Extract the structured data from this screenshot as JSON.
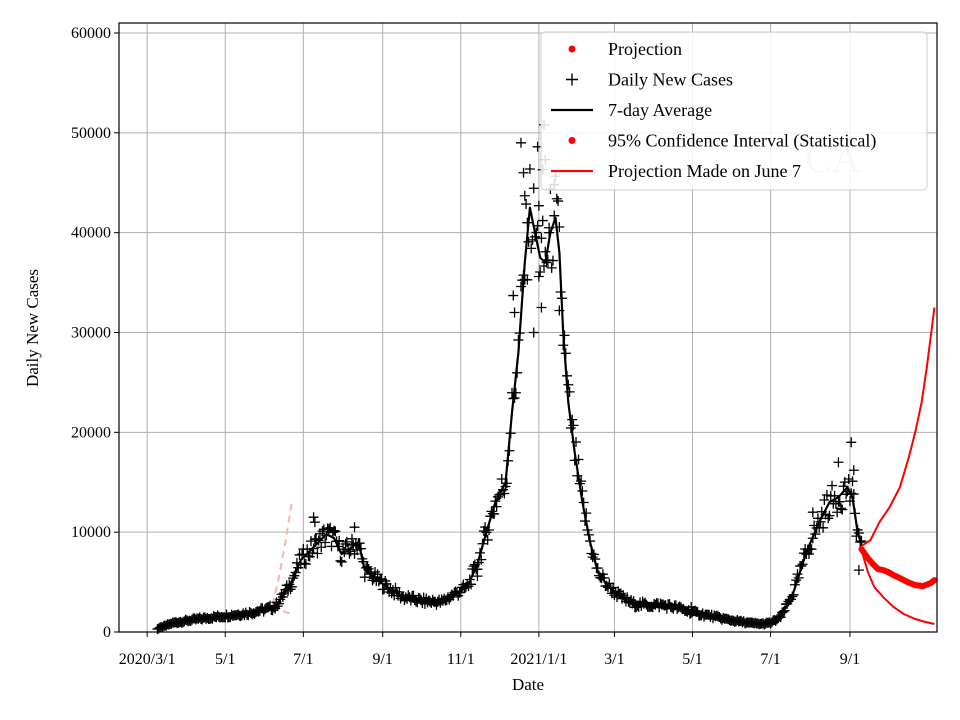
{
  "chart_data": {
    "type": "line",
    "title": "",
    "watermark": "CA",
    "xlabel": "Date",
    "ylabel": "Daily New Cases",
    "ylim": [
      0,
      61000
    ],
    "yticks": [
      0,
      10000,
      20000,
      30000,
      40000,
      50000,
      60000
    ],
    "ytick_labels": [
      "0",
      "10000",
      "20000",
      "30000",
      "40000",
      "50000",
      "60000"
    ],
    "xlim_days": [
      -22,
      617
    ],
    "xticks": [
      {
        "day": 0,
        "label": "2020/3/1"
      },
      {
        "day": 61,
        "label": "5/1"
      },
      {
        "day": 122,
        "label": "7/1"
      },
      {
        "day": 184,
        "label": "9/1"
      },
      {
        "day": 245,
        "label": "11/1"
      },
      {
        "day": 306,
        "label": "2021/1/1"
      },
      {
        "day": 365,
        "label": "3/1"
      },
      {
        "day": 426,
        "label": "5/1"
      },
      {
        "day": 487,
        "label": "7/1"
      },
      {
        "day": 549,
        "label": "9/1"
      }
    ],
    "grid": true,
    "legend_position": "top-right",
    "legend": [
      {
        "key": "projection",
        "label": "Projection",
        "marker": "dot",
        "color": "#ff0000"
      },
      {
        "key": "daily",
        "label": "Daily New Cases",
        "marker": "plus",
        "color": "#000000"
      },
      {
        "key": "avg",
        "label": "7-day Average",
        "marker": "line",
        "color": "#000000"
      },
      {
        "key": "ci",
        "label": "95% Confidence Interval (Statistical)",
        "marker": "dot",
        "color": "#ff0000"
      },
      {
        "key": "june7",
        "label": "Projection Made on June 7",
        "marker": "line",
        "color": "#ff0000"
      }
    ],
    "colors": {
      "daily": "#000000",
      "avg": "#000000",
      "projection": "#ff0000",
      "june7_ci": "#ffb0b0",
      "grid": "#b0b0b0"
    },
    "avg_anchors": [
      [
        8,
        300
      ],
      [
        20,
        900
      ],
      [
        40,
        1300
      ],
      [
        60,
        1600
      ],
      [
        80,
        1900
      ],
      [
        100,
        2500
      ],
      [
        112,
        4800
      ],
      [
        120,
        7200
      ],
      [
        130,
        8500
      ],
      [
        140,
        9800
      ],
      [
        146,
        9400
      ],
      [
        152,
        7800
      ],
      [
        160,
        8500
      ],
      [
        165,
        9000
      ],
      [
        170,
        6200
      ],
      [
        180,
        5200
      ],
      [
        190,
        4300
      ],
      [
        200,
        3500
      ],
      [
        215,
        3100
      ],
      [
        230,
        3000
      ],
      [
        240,
        3800
      ],
      [
        250,
        4500
      ],
      [
        258,
        6800
      ],
      [
        265,
        10000
      ],
      [
        272,
        13000
      ],
      [
        280,
        15000
      ],
      [
        285,
        22000
      ],
      [
        290,
        28000
      ],
      [
        295,
        37000
      ],
      [
        299,
        42500
      ],
      [
        303,
        40000
      ],
      [
        307,
        37500
      ],
      [
        311,
        37000
      ],
      [
        315,
        40000
      ],
      [
        319,
        41500
      ],
      [
        322,
        38000
      ],
      [
        325,
        30000
      ],
      [
        329,
        23000
      ],
      [
        334,
        18000
      ],
      [
        340,
        13000
      ],
      [
        346,
        9000
      ],
      [
        352,
        6000
      ],
      [
        360,
        4600
      ],
      [
        370,
        3500
      ],
      [
        380,
        2800
      ],
      [
        392,
        2700
      ],
      [
        402,
        2700
      ],
      [
        412,
        2500
      ],
      [
        425,
        2000
      ],
      [
        440,
        1600
      ],
      [
        455,
        1200
      ],
      [
        470,
        900
      ],
      [
        480,
        800
      ],
      [
        487,
        900
      ],
      [
        495,
        1500
      ],
      [
        505,
        4000
      ],
      [
        515,
        8000
      ],
      [
        525,
        11000
      ],
      [
        533,
        13000
      ],
      [
        540,
        13500
      ],
      [
        547,
        14500
      ],
      [
        551,
        13500
      ],
      [
        555,
        10000
      ],
      [
        558,
        8800
      ]
    ],
    "daily_scatter_noise_pct": 12,
    "daily_scatter_outliers": [
      [
        292,
        49000
      ],
      [
        294,
        46000
      ],
      [
        295,
        43700
      ],
      [
        297,
        41000
      ],
      [
        305,
        48600
      ],
      [
        306,
        42700
      ],
      [
        308,
        32500
      ],
      [
        309,
        46300
      ],
      [
        310,
        50800
      ],
      [
        311,
        47300
      ],
      [
        314,
        40000
      ],
      [
        318,
        41700
      ],
      [
        322,
        32200
      ],
      [
        302,
        30000
      ],
      [
        287,
        32000
      ],
      [
        286,
        33700
      ],
      [
        130,
        11500
      ],
      [
        131,
        11000
      ],
      [
        162,
        10500
      ],
      [
        520,
        12000
      ],
      [
        540,
        17000
      ],
      [
        550,
        19000
      ],
      [
        552,
        16200
      ],
      [
        556,
        6200
      ],
      [
        258,
        5600
      ],
      [
        425,
        2500
      ]
    ],
    "projection_mean": [
      [
        558,
        8300
      ],
      [
        563,
        7400
      ],
      [
        567,
        6800
      ],
      [
        571,
        6300
      ],
      [
        575,
        6200
      ],
      [
        579,
        6000
      ],
      [
        583,
        5700
      ],
      [
        588,
        5400
      ],
      [
        594,
        5000
      ],
      [
        600,
        4700
      ],
      [
        606,
        4600
      ],
      [
        612,
        4900
      ],
      [
        615,
        5200
      ]
    ],
    "projection_upper": [
      [
        558,
        8600
      ],
      [
        565,
        9200
      ],
      [
        572,
        11000
      ],
      [
        580,
        12500
      ],
      [
        588,
        14500
      ],
      [
        595,
        17500
      ],
      [
        600,
        20000
      ],
      [
        605,
        23000
      ],
      [
        609,
        26500
      ],
      [
        613,
        30500
      ],
      [
        615,
        32500
      ]
    ],
    "projection_lower": [
      [
        558,
        8200
      ],
      [
        563,
        6000
      ],
      [
        568,
        4500
      ],
      [
        575,
        3500
      ],
      [
        583,
        2500
      ],
      [
        591,
        1800
      ],
      [
        600,
        1300
      ],
      [
        608,
        1000
      ],
      [
        615,
        800
      ]
    ],
    "june7_ci_upper": [
      [
        98,
        2700
      ],
      [
        103,
        5500
      ],
      [
        108,
        9000
      ],
      [
        113,
        13000
      ]
    ],
    "june7_ci_mid": [
      [
        98,
        2700
      ],
      [
        103,
        3600
      ],
      [
        108,
        4500
      ],
      [
        113,
        5100
      ]
    ],
    "june7_ci_lower": [
      [
        98,
        2700
      ],
      [
        103,
        2400
      ],
      [
        108,
        2000
      ],
      [
        113,
        1800
      ]
    ]
  }
}
